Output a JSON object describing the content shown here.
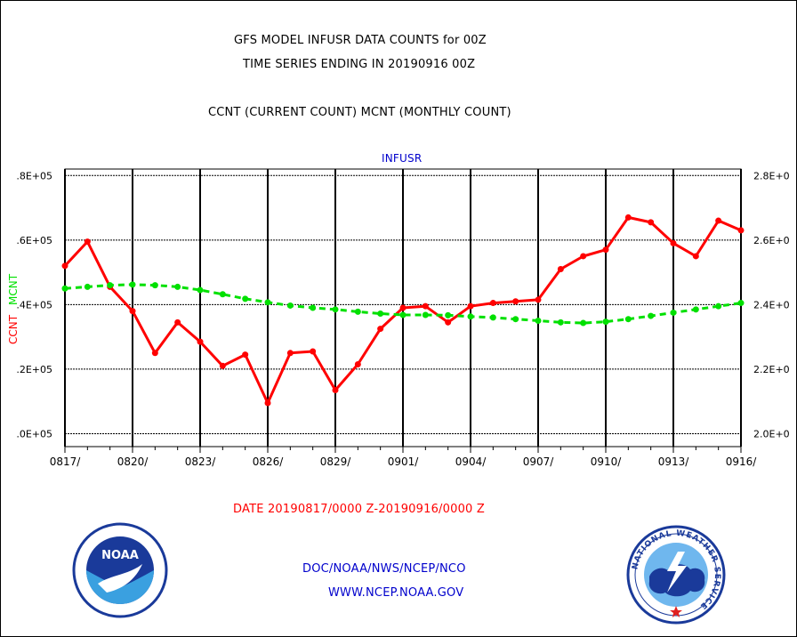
{
  "title": {
    "line1": "GFS MODEL INFUSR DATA COUNTS for 00Z",
    "line2": "TIME SERIES ENDING IN 20190916 00Z",
    "line3": "CCNT (CURRENT COUNT) MCNT (MONTHLY COUNT)"
  },
  "footer": {
    "date_range": "DATE 20190817/0000 Z-20190916/0000 Z",
    "org": "DOC/NOAA/NWS/NCEP/NCO",
    "url": "WWW.NCEP.NOAA.GOV"
  },
  "logos": {
    "left": "NOAA",
    "right": "NATIONAL WEATHER SERVICE"
  },
  "colors": {
    "ccnt": "#ff0000",
    "mcnt": "#00e000",
    "panel_label": "#0000cc",
    "grid": "#000000"
  },
  "chart_data": {
    "type": "line",
    "panel_label": "INFUSR",
    "ylabel_left": "CCNT",
    "ylabel_right": "MCNT",
    "left_ticks": [
      ".8E+05",
      ".6E+05",
      ".4E+05",
      ".2E+05",
      ".0E+05"
    ],
    "right_ticks": [
      "2.8E+0",
      "2.6E+0",
      "2.4E+0",
      "2.2E+0",
      "2.0E+0"
    ],
    "x_tick_labels": [
      "0817/",
      "0820/",
      "0823/",
      "0826/",
      "0829/",
      "0901/",
      "0904/",
      "0907/",
      "0910/",
      "0913/",
      "0916/"
    ],
    "left_ylim": [
      -4000,
      82000
    ],
    "right_ylim": [
      1.96,
      2.82
    ],
    "grid": true,
    "x": [
      "0817",
      "0818",
      "0819",
      "0820",
      "0821",
      "0822",
      "0823",
      "0824",
      "0825",
      "0826",
      "0827",
      "0828",
      "0829",
      "0830",
      "0831",
      "0901",
      "0902",
      "0903",
      "0904",
      "0905",
      "0906",
      "0907",
      "0908",
      "0909",
      "0910",
      "0911",
      "0912",
      "0913",
      "0914",
      "0915",
      "0916"
    ],
    "series": [
      {
        "name": "CCNT",
        "axis": "left",
        "style": "solid",
        "values": [
          52000,
          59500,
          45500,
          38000,
          25000,
          34500,
          28500,
          21000,
          24500,
          9500,
          25000,
          25500,
          13500,
          21500,
          32500,
          39000,
          39500,
          34500,
          39500,
          40500,
          41000,
          41500,
          51000,
          55000,
          57000,
          67000,
          65500,
          59000,
          55000,
          66000,
          63000
        ]
      },
      {
        "name": "MCNT",
        "axis": "right",
        "style": "dashed",
        "values": [
          2.45,
          2.455,
          2.46,
          2.462,
          2.46,
          2.455,
          2.445,
          2.432,
          2.418,
          2.407,
          2.397,
          2.39,
          2.385,
          2.378,
          2.372,
          2.368,
          2.368,
          2.367,
          2.363,
          2.36,
          2.355,
          2.35,
          2.345,
          2.343,
          2.347,
          2.355,
          2.365,
          2.375,
          2.385,
          2.395,
          2.405
        ]
      }
    ]
  }
}
